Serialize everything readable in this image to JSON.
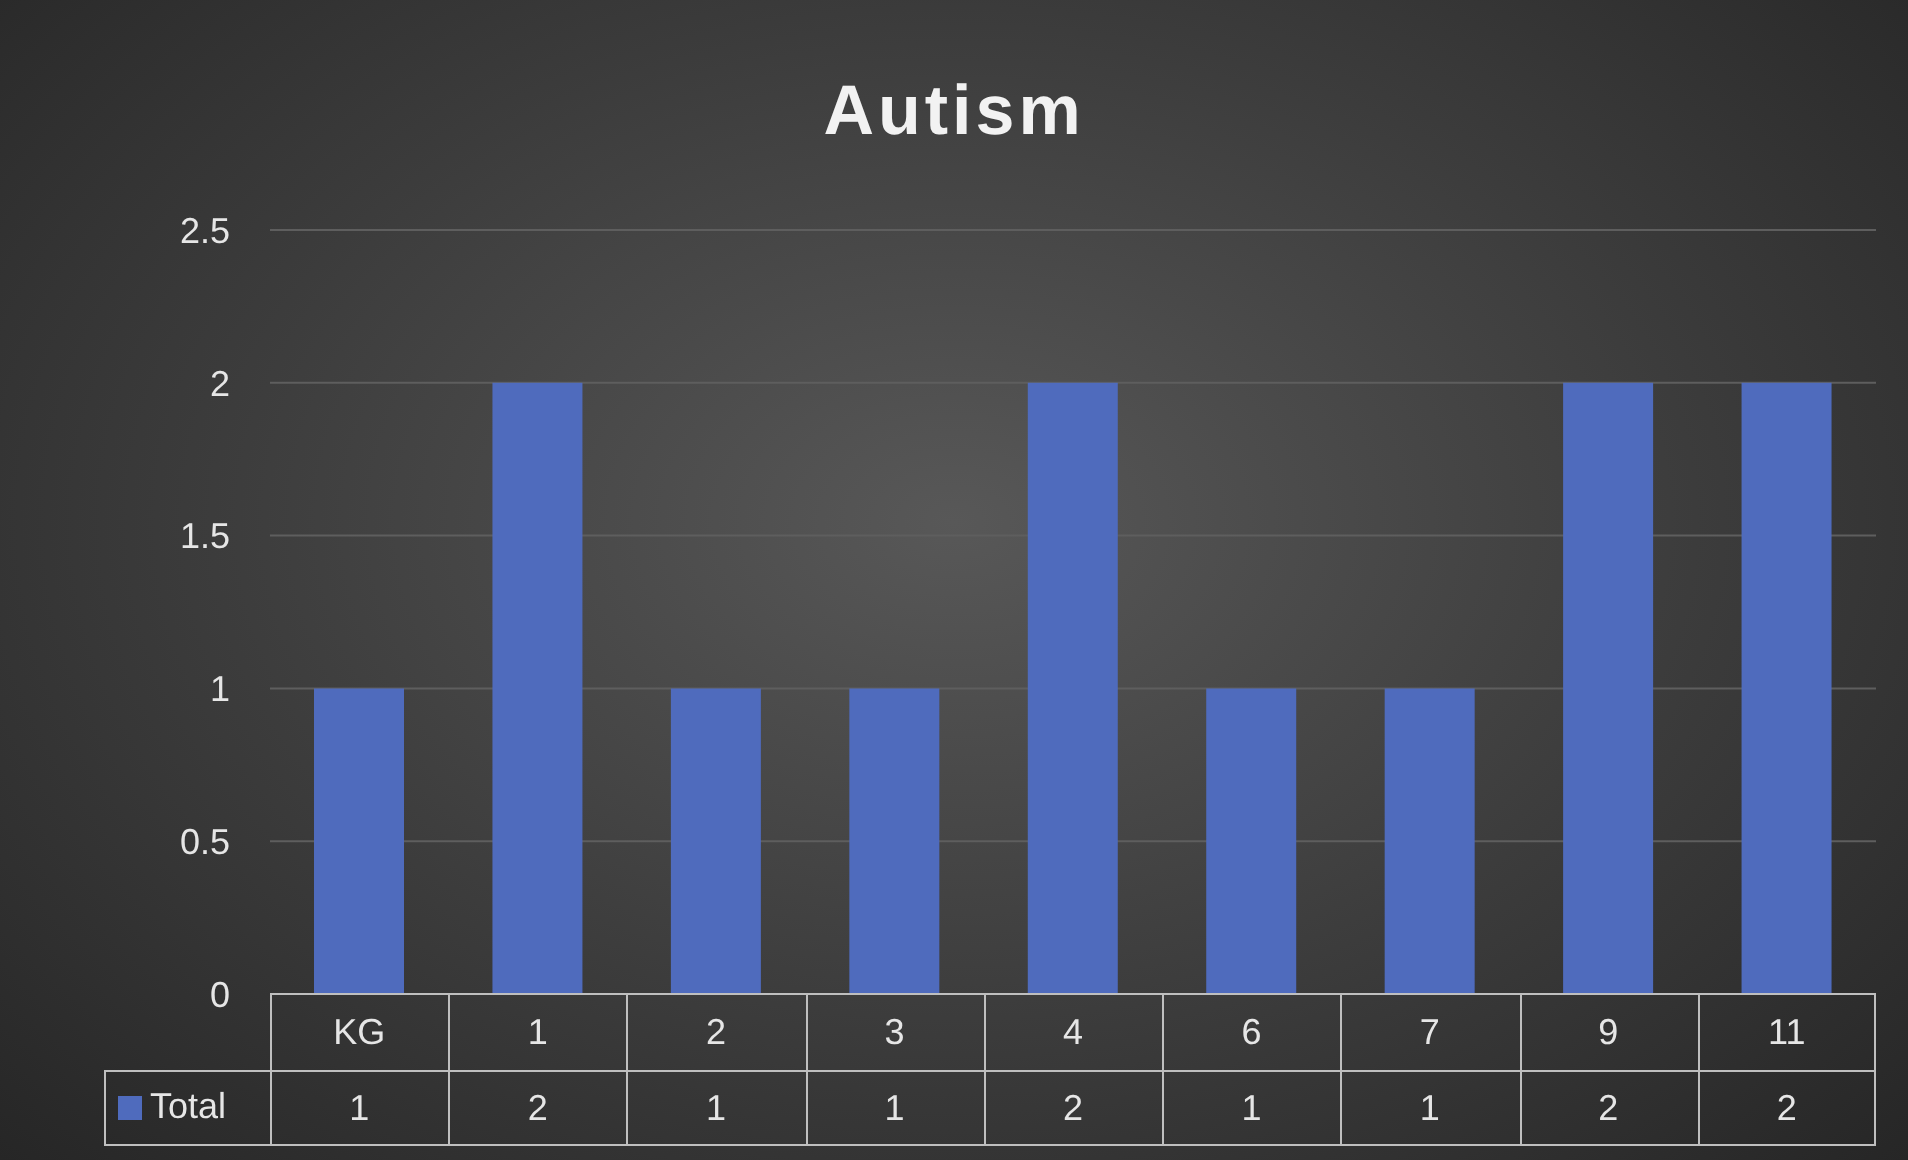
{
  "chart_data": {
    "type": "bar",
    "title": "Autism",
    "categories": [
      "KG",
      "1",
      "2",
      "3",
      "4",
      "6",
      "7",
      "9",
      "11"
    ],
    "series": [
      {
        "name": "Total",
        "color": "#4f6bbd",
        "values": [
          1,
          2,
          1,
          1,
          2,
          1,
          1,
          2,
          2
        ]
      }
    ],
    "ylim": [
      0,
      2.5
    ],
    "yticks": [
      0,
      0.5,
      1,
      1.5,
      2,
      2.5
    ],
    "grid": "y",
    "data_labels": true,
    "legend": "bottom"
  }
}
